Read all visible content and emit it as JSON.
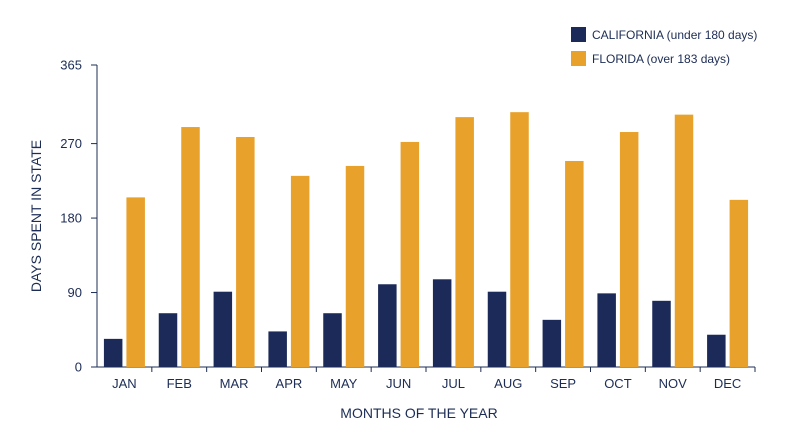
{
  "chart_data": {
    "type": "bar",
    "xlabel": "MONTHS OF THE YEAR",
    "ylabel": "DAYS SPENT IN STATE",
    "ylim": [
      0,
      365
    ],
    "yticks": [
      "0",
      "90",
      "180",
      "270",
      "365"
    ],
    "ytick_values": [
      0,
      90,
      180,
      270,
      365
    ],
    "grid": false,
    "legend_position": "top-right",
    "categories": [
      "JAN",
      "FEB",
      "MAR",
      "APR",
      "MAY",
      "JUN",
      "JUL",
      "AUG",
      "SEP",
      "OCT",
      "NOV",
      "DEC"
    ],
    "series": [
      {
        "name": "CALIFORNIA (under 180 days)",
        "color": "#1b2a58",
        "values": [
          34,
          65,
          91,
          43,
          65,
          100,
          106,
          91,
          57,
          89,
          80,
          39
        ]
      },
      {
        "name": "FLORIDA (over 183 days)",
        "color": "#e8a12a",
        "values": [
          205,
          290,
          278,
          231,
          243,
          272,
          302,
          308,
          249,
          284,
          305,
          202
        ]
      }
    ]
  }
}
